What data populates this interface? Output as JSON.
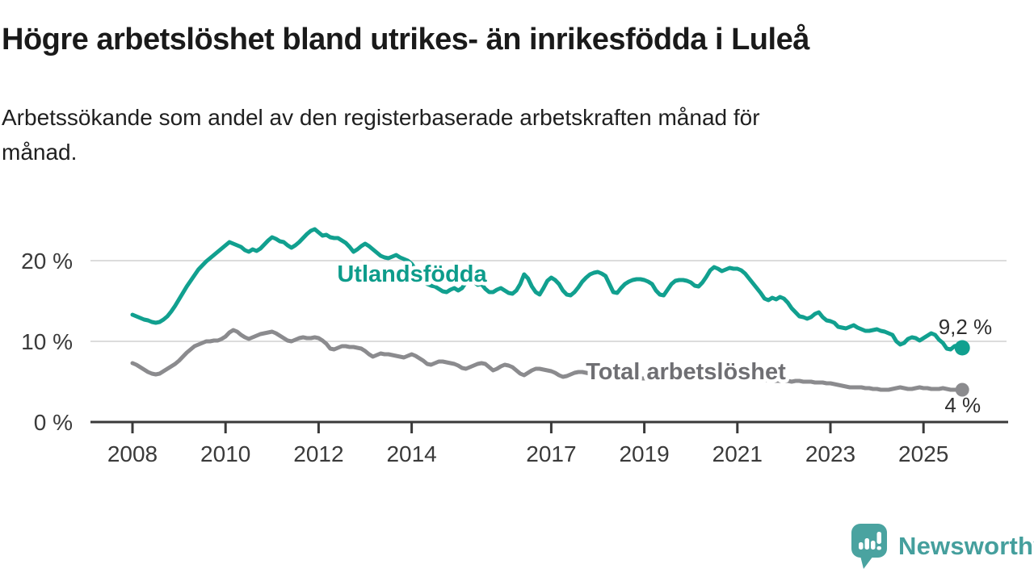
{
  "header": {
    "title": "Högre arbetslöshet bland utrikes- än inrikesfödda i Luleå",
    "subtitle_lines": [
      "Arbetssökande som andel av den registerbaserade arbetskraften månad för",
      "månad."
    ]
  },
  "logo": {
    "brand": "Newsworthy",
    "color": "#4aa3a0"
  },
  "chart_data": {
    "type": "line",
    "title": "Högre arbetslöshet bland utrikes- än inrikesfödda i Luleå",
    "subtitle": "Arbetssökande som andel av den registerbaserade arbetskraften månad för månad.",
    "x_unit": "time, monthly from 2008-01 to 2025-11",
    "x_start_year": 2008,
    "x_step_months": 1,
    "grid": "horizontal only",
    "ylim": [
      0,
      25
    ],
    "y_ticks": [
      {
        "value": 20,
        "label": "20 %"
      },
      {
        "value": 10,
        "label": "10 %"
      },
      {
        "value": 0,
        "label": "0 %"
      }
    ],
    "x_ticks": [
      {
        "year": 2008,
        "label": "2008"
      },
      {
        "year": 2010,
        "label": "2010"
      },
      {
        "year": 2012,
        "label": "2012"
      },
      {
        "year": 2014,
        "label": "2014"
      },
      {
        "year": 2017,
        "label": "2017"
      },
      {
        "year": 2019,
        "label": "2019"
      },
      {
        "year": 2021,
        "label": "2021"
      },
      {
        "year": 2023,
        "label": "2023"
      },
      {
        "year": 2025,
        "label": "2025"
      }
    ],
    "series": [
      {
        "name": "Utlandsfödda",
        "line_color": "#11a08f",
        "label_color": "#0d9c8b",
        "end_label": "9,2 %",
        "end_value": 9.2,
        "values": [
          13.3,
          13.1,
          12.9,
          12.7,
          12.6,
          12.4,
          12.3,
          12.4,
          12.7,
          13.1,
          13.7,
          14.4,
          15.2,
          16.0,
          16.8,
          17.5,
          18.2,
          18.9,
          19.4,
          19.9,
          20.3,
          20.7,
          21.1,
          21.5,
          21.9,
          22.3,
          22.1,
          21.9,
          21.7,
          21.3,
          21.1,
          21.4,
          21.2,
          21.5,
          22.0,
          22.5,
          22.9,
          22.7,
          22.4,
          22.3,
          21.9,
          21.6,
          21.9,
          22.3,
          22.8,
          23.3,
          23.7,
          23.9,
          23.5,
          23.1,
          23.2,
          22.9,
          22.8,
          22.8,
          22.5,
          22.2,
          21.7,
          21.1,
          21.4,
          21.8,
          22.1,
          21.8,
          21.4,
          21.0,
          20.6,
          20.4,
          20.3,
          20.5,
          20.7,
          20.4,
          20.2,
          20.0,
          19.6,
          18.9,
          18.1,
          17.4,
          17.1,
          16.9,
          16.8,
          16.5,
          16.2,
          16.1,
          16.4,
          16.6,
          16.3,
          16.6,
          17.3,
          18.0,
          17.4,
          17.0,
          17.1,
          16.5,
          16.1,
          16.1,
          16.4,
          16.6,
          16.3,
          16.0,
          15.9,
          16.3,
          17.1,
          18.3,
          17.8,
          16.8,
          16.1,
          15.8,
          16.6,
          17.5,
          17.9,
          17.6,
          17.1,
          16.3,
          15.8,
          15.7,
          16.1,
          16.7,
          17.4,
          17.9,
          18.3,
          18.5,
          18.6,
          18.4,
          18.1,
          17.1,
          16.1,
          16.0,
          16.6,
          17.1,
          17.4,
          17.6,
          17.7,
          17.7,
          17.6,
          17.4,
          17.1,
          16.3,
          15.8,
          15.7,
          16.4,
          17.1,
          17.5,
          17.6,
          17.6,
          17.5,
          17.3,
          16.9,
          16.8,
          17.3,
          18.0,
          18.8,
          19.2,
          19.0,
          18.7,
          18.9,
          19.1,
          19.0,
          19.0,
          18.8,
          18.4,
          17.8,
          17.2,
          16.6,
          16.0,
          15.3,
          15.1,
          15.4,
          15.2,
          15.5,
          15.3,
          14.8,
          14.1,
          13.6,
          13.1,
          13.0,
          12.8,
          13.0,
          13.4,
          13.6,
          13.0,
          12.6,
          12.5,
          12.3,
          11.8,
          11.7,
          11.6,
          11.8,
          12.0,
          11.7,
          11.5,
          11.3,
          11.3,
          11.4,
          11.5,
          11.3,
          11.2,
          11.0,
          10.8,
          10.0,
          9.6,
          9.8,
          10.3,
          10.5,
          10.4,
          10.1,
          10.4,
          10.7,
          11.0,
          10.8,
          10.2,
          9.8,
          9.1,
          9.0,
          9.4,
          9.5,
          9.2
        ]
      },
      {
        "name": "Total arbetslöshet",
        "line_color": "#8b8b8e",
        "label_color": "#6f6f73",
        "end_label": "4 %",
        "end_value": 4.0,
        "values": [
          7.3,
          7.1,
          6.8,
          6.5,
          6.2,
          6.0,
          5.9,
          6.0,
          6.3,
          6.6,
          6.9,
          7.2,
          7.6,
          8.1,
          8.6,
          9.0,
          9.4,
          9.6,
          9.8,
          10.0,
          10.0,
          10.1,
          10.1,
          10.3,
          10.6,
          11.1,
          11.4,
          11.2,
          10.8,
          10.5,
          10.3,
          10.5,
          10.7,
          10.9,
          11.0,
          11.1,
          11.2,
          11.0,
          10.7,
          10.4,
          10.1,
          10.0,
          10.2,
          10.4,
          10.5,
          10.4,
          10.4,
          10.5,
          10.4,
          10.1,
          9.7,
          9.1,
          9.0,
          9.2,
          9.4,
          9.4,
          9.3,
          9.3,
          9.2,
          9.1,
          8.8,
          8.4,
          8.1,
          8.3,
          8.5,
          8.4,
          8.4,
          8.3,
          8.2,
          8.1,
          8.0,
          8.2,
          8.4,
          8.2,
          7.9,
          7.6,
          7.2,
          7.1,
          7.3,
          7.5,
          7.5,
          7.4,
          7.3,
          7.2,
          7.0,
          6.7,
          6.6,
          6.8,
          7.0,
          7.2,
          7.3,
          7.2,
          6.8,
          6.4,
          6.6,
          6.9,
          7.1,
          7.0,
          6.8,
          6.4,
          6.0,
          5.8,
          6.1,
          6.4,
          6.6,
          6.6,
          6.5,
          6.4,
          6.3,
          6.1,
          5.8,
          5.6,
          5.7,
          5.9,
          6.1,
          6.2,
          6.2,
          6.1,
          6.0,
          5.9,
          5.8,
          5.7,
          5.6,
          5.5,
          5.4,
          5.4,
          5.5,
          5.6,
          5.6,
          5.5,
          5.5,
          5.4,
          5.4,
          5.4,
          5.3,
          5.3,
          5.3,
          5.4,
          5.5,
          5.6,
          5.6,
          5.5,
          5.5,
          5.6,
          5.7,
          5.9,
          6.1,
          6.3,
          6.4,
          6.3,
          6.2,
          6.1,
          6.0,
          5.9,
          5.8,
          5.7,
          5.6,
          5.6,
          5.5,
          5.4,
          5.4,
          5.3,
          5.3,
          5.2,
          5.2,
          5.1,
          5.1,
          5.1,
          5.1,
          5.1,
          5.0,
          5.1,
          5.1,
          5.0,
          5.0,
          5.0,
          4.9,
          4.9,
          4.9,
          4.8,
          4.8,
          4.7,
          4.6,
          4.5,
          4.4,
          4.3,
          4.3,
          4.3,
          4.3,
          4.2,
          4.2,
          4.1,
          4.1,
          4.0,
          4.0,
          4.0,
          4.1,
          4.2,
          4.3,
          4.2,
          4.1,
          4.1,
          4.2,
          4.3,
          4.2,
          4.2,
          4.1,
          4.1,
          4.1,
          4.2,
          4.1,
          4.0,
          4.0,
          4.0,
          4.0
        ]
      }
    ]
  }
}
